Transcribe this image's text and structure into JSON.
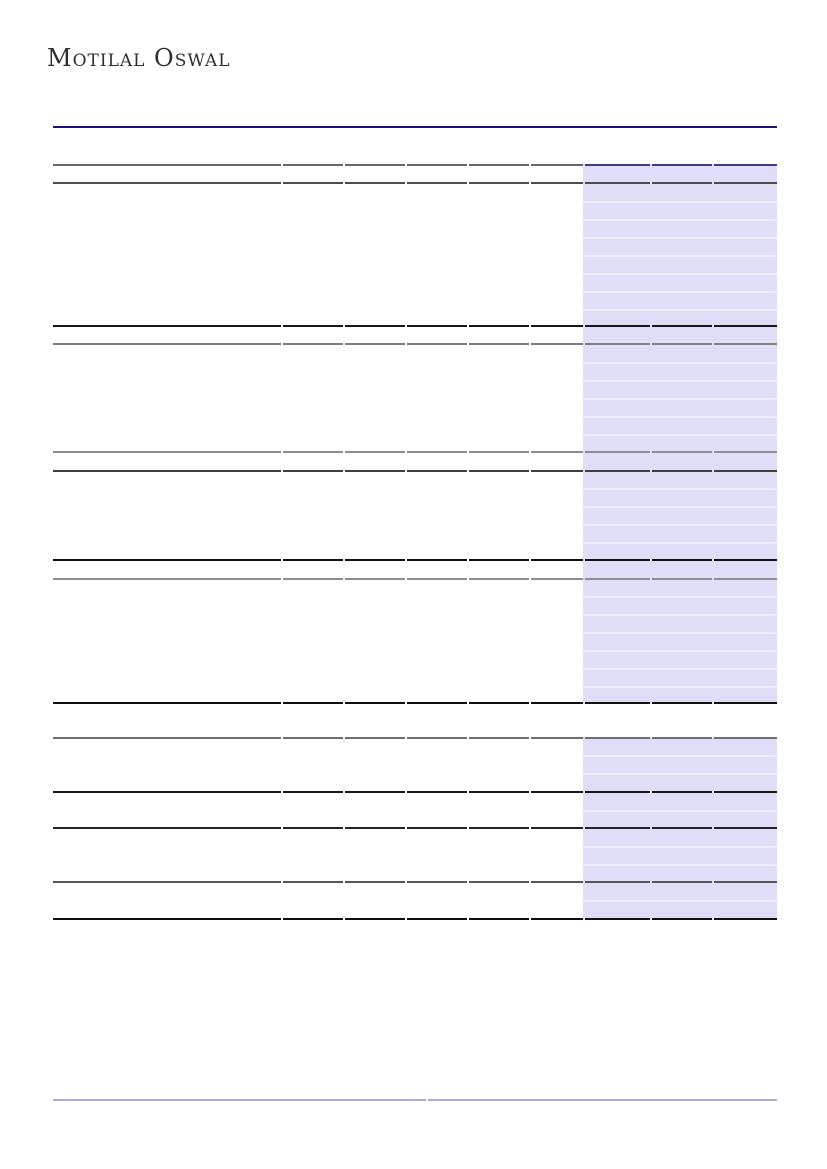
{
  "header": {
    "brand": "Motilal Oswal"
  },
  "colors": {
    "header_rule": "#1c1278",
    "table_shading": "#dfddf8",
    "row_separator": "#edecfb",
    "rule_dark": "#101010",
    "rule_black": "#161616",
    "rule_gray": "#7d7d7d",
    "table1_top_left": "#686868",
    "table1_top_right": "#3d3d8e",
    "footer_rule": "#b3a6d8",
    "logo_text": "#2e2e2e",
    "page_background": "#ffffff"
  }
}
